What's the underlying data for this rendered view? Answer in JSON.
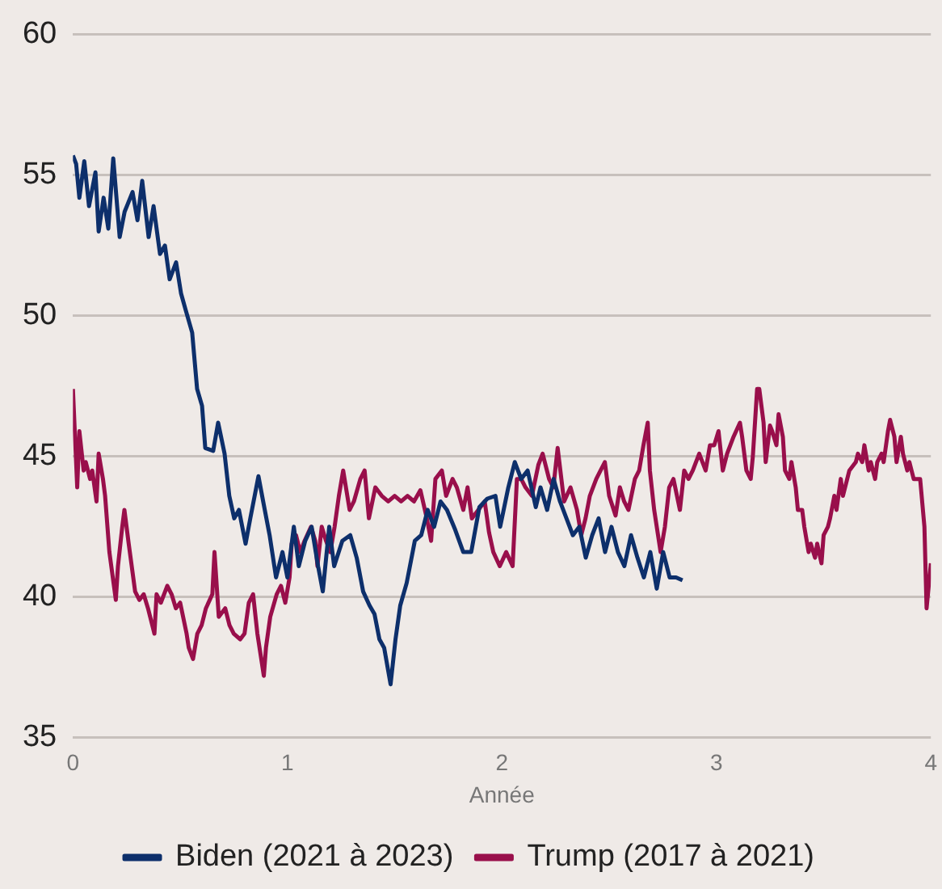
{
  "chart_data": {
    "type": "line",
    "xlabel": "Année",
    "xlim": [
      0,
      4
    ],
    "xticks": [
      0,
      1,
      2,
      3,
      4
    ],
    "ylim": [
      35,
      60
    ],
    "yticks": [
      35,
      40,
      45,
      50,
      55,
      60
    ],
    "grid": "y",
    "legend": "bottom",
    "marker": "none",
    "line_style": "solid",
    "series": [
      {
        "name": "Biden (2021 à 2023)",
        "color": "#0d2f6b",
        "x": [
          0,
          0.015,
          0.03,
          0.053,
          0.075,
          0.105,
          0.12,
          0.143,
          0.165,
          0.188,
          0.218,
          0.241,
          0.278,
          0.301,
          0.323,
          0.353,
          0.376,
          0.406,
          0.429,
          0.451,
          0.481,
          0.504,
          0.526,
          0.556,
          0.579,
          0.602,
          0.617,
          0.654,
          0.677,
          0.707,
          0.729,
          0.752,
          0.774,
          0.805,
          0.827,
          0.865,
          0.887,
          0.917,
          0.947,
          0.977,
          1.0,
          1.03,
          1.053,
          1.083,
          1.113,
          1.143,
          1.165,
          1.195,
          1.218,
          1.256,
          1.293,
          1.323,
          1.353,
          1.383,
          1.406,
          1.429,
          1.451,
          1.481,
          1.504,
          1.526,
          1.556,
          1.594,
          1.624,
          1.654,
          1.684,
          1.714,
          1.744,
          1.782,
          1.82,
          1.857,
          1.895,
          1.932,
          1.97,
          1.992,
          2.03,
          2.06,
          2.09,
          2.12,
          2.158,
          2.18,
          2.211,
          2.241,
          2.271,
          2.301,
          2.331,
          2.361,
          2.391,
          2.421,
          2.451,
          2.481,
          2.511,
          2.541,
          2.571,
          2.602,
          2.632,
          2.662,
          2.692,
          2.722,
          2.752,
          2.782,
          2.812,
          2.842
        ],
        "values": [
          55.7,
          55.4,
          54.2,
          55.5,
          53.9,
          55.1,
          53.0,
          54.2,
          53.1,
          55.6,
          52.8,
          53.7,
          54.4,
          53.4,
          54.8,
          52.8,
          53.9,
          52.2,
          52.5,
          51.3,
          51.9,
          50.8,
          50.2,
          49.4,
          47.4,
          46.8,
          45.3,
          45.2,
          46.2,
          45.1,
          43.6,
          42.8,
          43.1,
          41.9,
          42.8,
          44.3,
          43.4,
          42.2,
          40.7,
          41.6,
          40.7,
          42.5,
          41.1,
          42.0,
          42.5,
          41.1,
          40.2,
          42.5,
          41.1,
          42.0,
          42.2,
          41.4,
          40.2,
          39.7,
          39.4,
          38.5,
          38.2,
          36.9,
          38.5,
          39.7,
          40.5,
          42.0,
          42.2,
          43.1,
          42.5,
          43.4,
          43.1,
          42.4,
          41.6,
          41.6,
          43.2,
          43.5,
          43.6,
          42.5,
          43.9,
          44.8,
          44.2,
          44.5,
          43.2,
          43.9,
          43.1,
          44.2,
          43.4,
          42.8,
          42.2,
          42.5,
          41.4,
          42.2,
          42.8,
          41.6,
          42.5,
          41.6,
          41.1,
          42.2,
          41.4,
          40.7,
          41.6,
          40.3,
          41.6,
          40.7,
          40.7,
          40.6
        ]
      },
      {
        "name": "Trump (2017 à 2021)",
        "color": "#990f4b",
        "x": [
          0,
          0.02,
          0.03,
          0.05,
          0.06,
          0.08,
          0.09,
          0.11,
          0.12,
          0.14,
          0.15,
          0.17,
          0.2,
          0.21,
          0.23,
          0.24,
          0.26,
          0.29,
          0.31,
          0.33,
          0.35,
          0.38,
          0.39,
          0.41,
          0.44,
          0.46,
          0.48,
          0.5,
          0.53,
          0.54,
          0.56,
          0.58,
          0.6,
          0.62,
          0.65,
          0.66,
          0.68,
          0.71,
          0.73,
          0.75,
          0.78,
          0.8,
          0.82,
          0.84,
          0.86,
          0.89,
          0.9,
          0.92,
          0.95,
          0.97,
          0.99,
          1.01,
          1.02,
          1.04,
          1.06,
          1.08,
          1.11,
          1.13,
          1.14,
          1.16,
          1.18,
          1.2,
          1.22,
          1.24,
          1.26,
          1.29,
          1.31,
          1.34,
          1.36,
          1.38,
          1.41,
          1.44,
          1.47,
          1.5,
          1.53,
          1.56,
          1.59,
          1.62,
          1.65,
          1.67,
          1.69,
          1.72,
          1.74,
          1.77,
          1.79,
          1.82,
          1.84,
          1.86,
          1.89,
          1.92,
          1.94,
          1.96,
          1.99,
          2.02,
          2.05,
          2.07,
          2.09,
          2.11,
          2.14,
          2.17,
          2.19,
          2.22,
          2.24,
          2.26,
          2.29,
          2.32,
          2.35,
          2.37,
          2.39,
          2.41,
          2.44,
          2.46,
          2.48,
          2.5,
          2.53,
          2.55,
          2.57,
          2.59,
          2.62,
          2.64,
          2.66,
          2.68,
          2.69,
          2.71,
          2.74,
          2.76,
          2.78,
          2.8,
          2.83,
          2.85,
          2.87,
          2.89,
          2.92,
          2.95,
          2.97,
          2.99,
          3.01,
          3.03,
          3.05,
          3.08,
          3.11,
          3.12,
          3.14,
          3.16,
          3.17,
          3.19,
          3.2,
          3.22,
          3.23,
          3.25,
          3.26,
          3.28,
          3.29,
          3.31,
          3.32,
          3.34,
          3.35,
          3.37,
          3.38,
          3.4,
          3.41,
          3.43,
          3.44,
          3.46,
          3.47,
          3.49,
          3.5,
          3.52,
          3.53,
          3.55,
          3.56,
          3.58,
          3.59,
          3.61,
          3.62,
          3.65,
          3.66,
          3.68,
          3.69,
          3.71,
          3.72,
          3.74,
          3.75,
          3.77,
          3.78,
          3.8,
          3.81,
          3.83,
          3.84,
          3.86,
          3.87,
          3.89,
          3.9,
          3.92,
          3.93,
          3.95,
          3.97,
          3.98,
          4
        ],
        "values": [
          47.4,
          43.9,
          45.9,
          44.5,
          44.8,
          44.2,
          44.5,
          43.4,
          45.1,
          44.2,
          43.6,
          41.6,
          39.9,
          41.1,
          42.5,
          43.1,
          41.9,
          40.2,
          39.9,
          40.1,
          39.6,
          38.7,
          40.1,
          39.8,
          40.4,
          40.1,
          39.6,
          39.8,
          38.7,
          38.2,
          37.8,
          38.7,
          39.0,
          39.6,
          40.1,
          41.6,
          39.3,
          39.6,
          39.0,
          38.7,
          38.5,
          38.7,
          39.8,
          40.1,
          38.7,
          37.2,
          38.2,
          39.3,
          40.1,
          40.4,
          39.8,
          40.7,
          41.9,
          42.2,
          41.6,
          42.0,
          42.5,
          42.0,
          41.1,
          42.5,
          42.0,
          41.6,
          42.5,
          43.6,
          44.5,
          43.1,
          43.4,
          44.2,
          44.5,
          42.8,
          43.9,
          43.6,
          43.4,
          43.6,
          43.4,
          43.6,
          43.4,
          43.8,
          42.8,
          42.0,
          44.2,
          44.5,
          43.6,
          44.2,
          43.9,
          43.1,
          43.9,
          42.8,
          43.1,
          43.4,
          42.3,
          41.6,
          41.1,
          41.6,
          41.1,
          44.2,
          44.2,
          43.9,
          43.6,
          44.7,
          45.1,
          44.2,
          43.9,
          45.3,
          43.4,
          43.9,
          43.1,
          42.2,
          42.8,
          43.6,
          44.2,
          44.5,
          44.8,
          43.6,
          42.9,
          43.9,
          43.4,
          43.1,
          44.2,
          44.5,
          45.4,
          46.2,
          44.5,
          43.1,
          41.6,
          42.5,
          43.9,
          44.2,
          43.1,
          44.5,
          44.2,
          44.5,
          45.1,
          44.5,
          45.4,
          45.4,
          45.9,
          44.5,
          45.1,
          45.7,
          46.2,
          45.7,
          44.5,
          44.2,
          45.0,
          47.4,
          47.4,
          46.2,
          44.8,
          46.1,
          45.9,
          45.4,
          46.5,
          45.7,
          44.5,
          44.2,
          44.8,
          43.9,
          43.1,
          43.1,
          42.5,
          41.6,
          41.9,
          41.4,
          41.9,
          41.2,
          42.2,
          42.5,
          42.8,
          43.6,
          43.1,
          44.2,
          43.6,
          44.2,
          44.5,
          44.8,
          45.1,
          44.8,
          45.4,
          44.5,
          44.8,
          44.2,
          44.8,
          45.1,
          44.8,
          45.9,
          46.3,
          45.7,
          44.8,
          45.7,
          45.1,
          44.5,
          44.8,
          44.2,
          44.2,
          44.2,
          42.5,
          39.6,
          41.2
        ]
      }
    ]
  }
}
